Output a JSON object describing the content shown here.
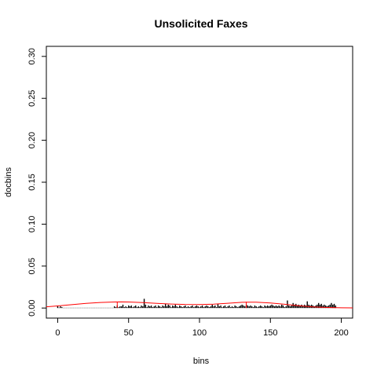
{
  "chart_data": {
    "type": "bar",
    "title": "Unsolicited Faxes",
    "xlabel": "bins",
    "ylabel": "docbins",
    "xlim": [
      -8,
      208
    ],
    "ylim": [
      -0.012,
      0.312
    ],
    "xticks": [
      0,
      50,
      100,
      150,
      200
    ],
    "yticks": [
      0.0,
      0.05,
      0.1,
      0.15,
      0.2,
      0.25,
      0.3
    ],
    "ytick_labels": [
      "0.00",
      "0.05",
      "0.10",
      "0.15",
      "0.20",
      "0.25",
      "0.30"
    ],
    "grid": false,
    "bars": {
      "color": "#000000",
      "x_start": 0,
      "values": [
        0.003,
        0.0005,
        0.002,
        0.001,
        0.0003,
        0.0003,
        0.0003,
        0.0003,
        0.0003,
        0.0003,
        0.0003,
        0.0003,
        0.0003,
        0.0003,
        0.0003,
        0.0003,
        0.0003,
        0.0003,
        0.0003,
        0.0003,
        0.0003,
        0.0003,
        0.0003,
        0.0003,
        0.0003,
        0.0003,
        0.0003,
        0.0003,
        0.0003,
        0.0003,
        0.0003,
        0.0003,
        0.0003,
        0.0003,
        0.0003,
        0.0003,
        0.0003,
        0.0003,
        0.0003,
        0.0003,
        0.002,
        0.001,
        0.003,
        0.001,
        0.002,
        0.002,
        0.004,
        0.001,
        0.002,
        0.001,
        0.003,
        0.002,
        0.003,
        0.001,
        0.002,
        0.003,
        0.001,
        0.002,
        0.001,
        0.003,
        0.002,
        0.011,
        0.004,
        0.001,
        0.003,
        0.002,
        0.003,
        0.001,
        0.002,
        0.003,
        0.001,
        0.003,
        0.002,
        0.001,
        0.003,
        0.002,
        0.005,
        0.002,
        0.004,
        0.003,
        0.001,
        0.003,
        0.002,
        0.004,
        0.002,
        0.001,
        0.003,
        0.002,
        0.001,
        0.002,
        0.003,
        0.001,
        0.002,
        0.001,
        0.002,
        0.003,
        0.001,
        0.002,
        0.003,
        0.002,
        0.001,
        0.002,
        0.003,
        0.001,
        0.002,
        0.003,
        0.002,
        0.001,
        0.002,
        0.004,
        0.002,
        0.003,
        0.001,
        0.005,
        0.002,
        0.003,
        0.001,
        0.002,
        0.003,
        0.001,
        0.002,
        0.003,
        0.001,
        0.002,
        0.001,
        0.003,
        0.002,
        0.001,
        0.002,
        0.003,
        0.004,
        0.003,
        0.002,
        0.004,
        0.003,
        0.002,
        0.003,
        0.002,
        0.001,
        0.003,
        0.002,
        0.001,
        0.002,
        0.003,
        0.002,
        0.001,
        0.003,
        0.002,
        0.003,
        0.002,
        0.003,
        0.004,
        0.003,
        0.002,
        0.003,
        0.002,
        0.003,
        0.002,
        0.004,
        0.003,
        0.001,
        0.002,
        0.009,
        0.003,
        0.002,
        0.003,
        0.006,
        0.004,
        0.005,
        0.003,
        0.004,
        0.003,
        0.004,
        0.002,
        0.004,
        0.003,
        0.008,
        0.004,
        0.003,
        0.004,
        0.003,
        0.002,
        0.003,
        0.004,
        0.006,
        0.004,
        0.005,
        0.003,
        0.004,
        0.003,
        0.002,
        0.003,
        0.004,
        0.006,
        0.004,
        0.005,
        0.003
      ]
    },
    "curve": {
      "color": "#ff0000",
      "x": [
        -8,
        0,
        10,
        20,
        30,
        40,
        45,
        50,
        60,
        70,
        80,
        90,
        100,
        110,
        120,
        130,
        135,
        140,
        150,
        160,
        170,
        180,
        190,
        200,
        208
      ],
      "y": [
        0.0015,
        0.0025,
        0.004,
        0.0055,
        0.0066,
        0.0072,
        0.0073,
        0.0072,
        0.0065,
        0.0056,
        0.0048,
        0.0043,
        0.0042,
        0.0047,
        0.0057,
        0.0068,
        0.007,
        0.0069,
        0.006,
        0.0045,
        0.0028,
        0.0014,
        0.0006,
        0.0003,
        0.0002
      ]
    },
    "vlines": {
      "color": "#ff0000",
      "x": [
        42,
        133
      ],
      "height": 0.0075
    }
  }
}
